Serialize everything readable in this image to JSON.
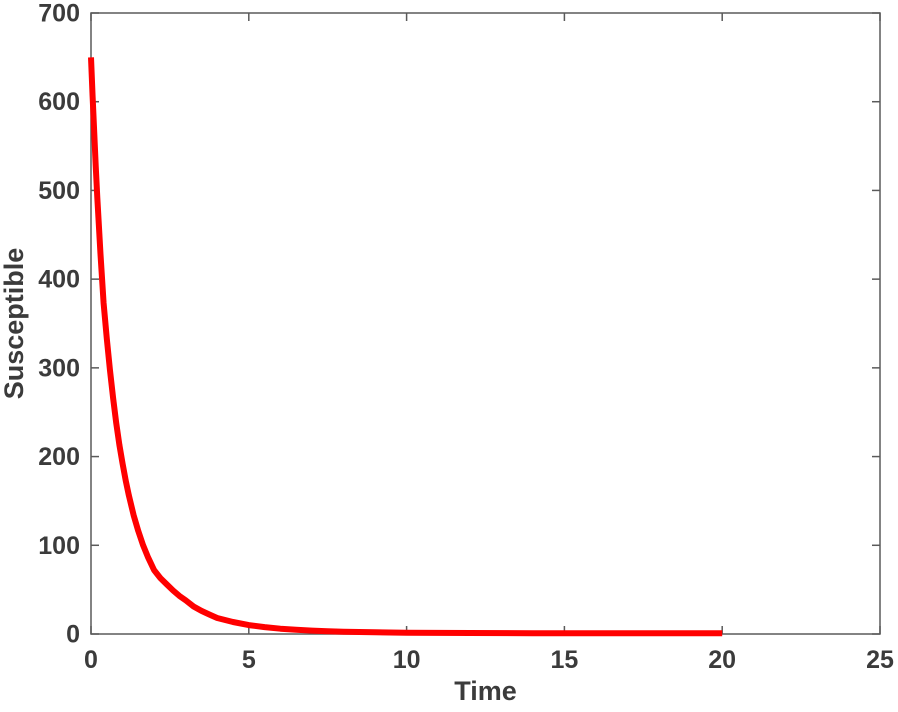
{
  "figure": {
    "background_color": "#FFFFFF",
    "text_color": "#3B3B3B",
    "axis_color": "#5A5A5A"
  },
  "chart_data": {
    "type": "line",
    "title": "",
    "xlabel": "Time",
    "ylabel": "Susceptible",
    "xlim": [
      0,
      25
    ],
    "ylim": [
      0,
      700
    ],
    "grid": false,
    "legend": null,
    "box": true,
    "tick_direction": "in",
    "xticks": {
      "values": [
        0,
        5,
        10,
        15,
        20,
        25
      ],
      "labels": [
        "0",
        "5",
        "10",
        "15",
        "20",
        "25"
      ]
    },
    "yticks": {
      "values": [
        0,
        100,
        200,
        300,
        400,
        500,
        600,
        700
      ],
      "labels": [
        "0",
        "100",
        "200",
        "300",
        "400",
        "500",
        "600",
        "700"
      ]
    },
    "series": [
      {
        "name": "Susceptible",
        "color": "#FF0000",
        "line_width": 6,
        "x": [
          0,
          0.05,
          0.1,
          0.15,
          0.2,
          0.3,
          0.4,
          0.5,
          0.6,
          0.7,
          0.8,
          0.9,
          1,
          1.1,
          1.2,
          1.35,
          1.5,
          1.65,
          1.8,
          2,
          2.2,
          2.4,
          2.6,
          2.8,
          3,
          3.25,
          3.5,
          3.75,
          4,
          4.5,
          5,
          5.5,
          6,
          6.5,
          7,
          7.5,
          8,
          9,
          10,
          11,
          12,
          14,
          16,
          18,
          20
        ],
        "y": [
          650,
          606,
          566,
          528,
          492,
          428,
          373,
          333,
          298,
          266,
          238,
          213,
          192,
          173,
          156,
          134,
          116,
          100,
          87,
          72,
          63,
          56,
          49,
          43,
          38,
          31,
          26,
          22,
          18,
          13.5,
          10,
          7.8,
          6,
          4.8,
          3.8,
          3.1,
          2.6,
          1.9,
          1.5,
          1.2,
          1.1,
          0.9,
          0.85,
          0.8,
          0.8
        ]
      }
    ]
  }
}
